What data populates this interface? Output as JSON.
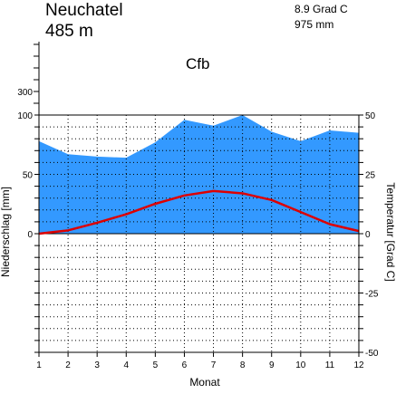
{
  "station": {
    "name": "Neuchatel",
    "elevation": "485 m",
    "mean_temp": "8.9 Grad C",
    "annual_precip": "975 mm",
    "climate_class": "Cfb"
  },
  "colors": {
    "precip_fill": "#3399ff",
    "temp_line": "#dd0000",
    "grid": "#000000"
  },
  "chart_data": {
    "type": "area",
    "title": "",
    "xlabel": "Monat",
    "ylabel_left": "Niederschlag [mm]",
    "ylabel_right": "Temperatur [Grad C]",
    "x": [
      1,
      2,
      3,
      4,
      5,
      6,
      7,
      8,
      9,
      10,
      11,
      12
    ],
    "x_ticks": [
      "1",
      "2",
      "3",
      "4",
      "5",
      "6",
      "7",
      "8",
      "9",
      "10",
      "11",
      "12"
    ],
    "left_ticks": [
      "300",
      "100",
      "50",
      "0"
    ],
    "right_ticks": [
      "50",
      "25",
      "0",
      "-25",
      "-50"
    ],
    "left_scale": "0-100 mm linear, above 100 mm compressed",
    "right_ylim": [
      -50,
      50
    ],
    "grid": true,
    "series": [
      {
        "name": "Niederschlag",
        "type": "area",
        "axis": "left",
        "values": [
          78,
          67,
          65,
          64,
          77,
          96,
          91,
          100,
          86,
          78,
          87,
          85
        ]
      },
      {
        "name": "Temperatur",
        "type": "line",
        "axis": "right",
        "values": [
          0.0,
          1.4,
          4.6,
          8.2,
          12.6,
          16.1,
          18.0,
          17.0,
          14.2,
          9.1,
          4.0,
          1.1
        ]
      }
    ]
  }
}
